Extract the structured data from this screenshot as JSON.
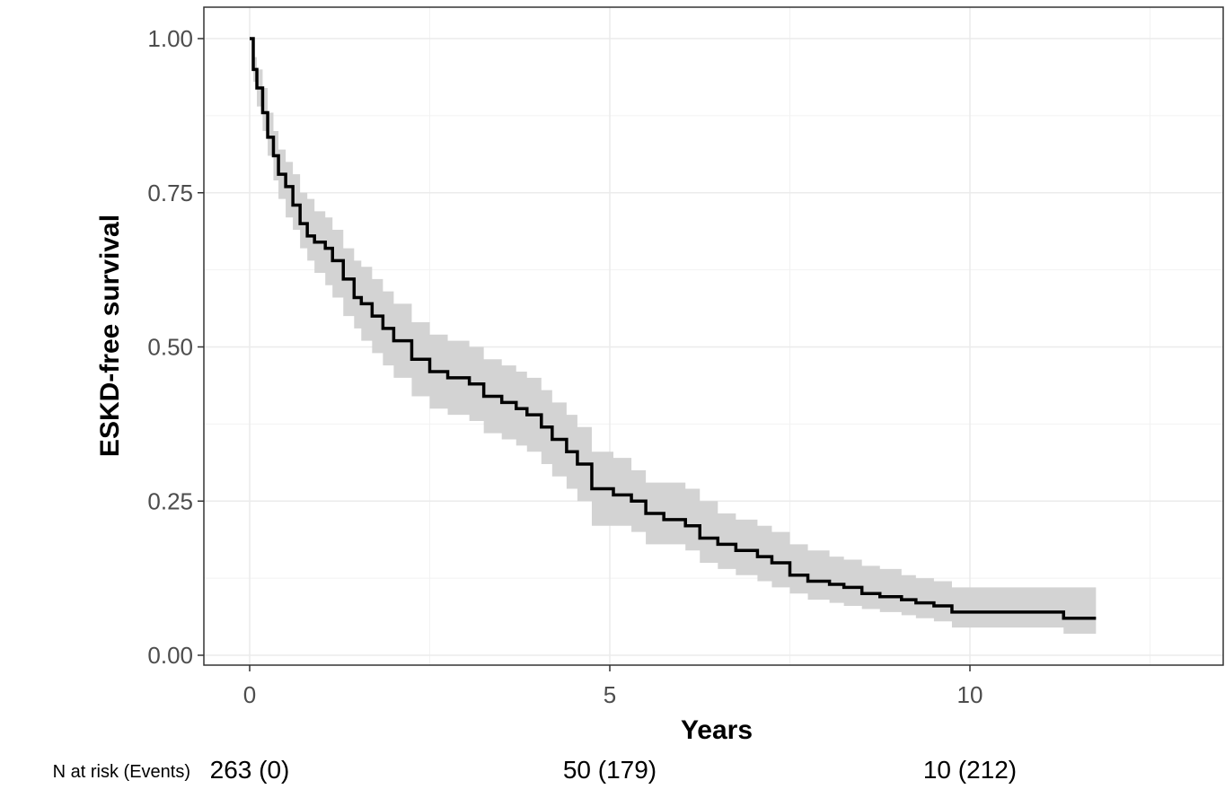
{
  "chart_data": {
    "type": "line",
    "subtype": "kaplan-meier-step",
    "xlabel": "Years",
    "ylabel": "ESKD-free survival",
    "xlim": [
      -1.25,
      27.1
    ],
    "ylim": [
      -0.05,
      1.05
    ],
    "x_ticks": [
      0,
      5,
      10
    ],
    "x_tick_labels": [
      "0",
      "5",
      "10"
    ],
    "y_ticks": [
      0,
      0.25,
      0.5,
      0.75,
      1.0
    ],
    "y_tick_labels": [
      "0.00",
      "0.25",
      "0.50",
      "0.75",
      "1.00"
    ],
    "grid": true,
    "line_color": "#000000",
    "ci_color": "#d3d3d3",
    "series": [
      {
        "x": [
          0,
          0.05,
          0.1,
          0.18,
          0.25,
          0.33,
          0.4,
          0.5,
          0.6,
          0.7,
          0.8,
          0.9,
          1.05,
          1.15,
          1.3,
          1.45,
          1.55,
          1.7,
          1.85,
          2.0,
          2.25,
          2.5,
          2.75,
          3.05,
          3.25,
          3.5,
          3.7,
          3.85,
          4.05,
          4.2,
          4.4,
          4.55,
          4.75,
          5.05,
          5.3,
          5.5,
          5.75,
          6.05,
          6.25,
          6.5,
          6.75,
          7.05,
          7.25,
          7.5,
          7.75,
          8.05,
          8.25,
          8.5,
          8.75,
          9.05,
          9.25,
          9.5,
          9.75,
          11.3,
          11.75
        ],
        "y": [
          1.0,
          0.95,
          0.92,
          0.88,
          0.84,
          0.81,
          0.78,
          0.76,
          0.73,
          0.7,
          0.68,
          0.67,
          0.66,
          0.64,
          0.61,
          0.58,
          0.57,
          0.55,
          0.53,
          0.51,
          0.48,
          0.46,
          0.45,
          0.44,
          0.42,
          0.41,
          0.4,
          0.39,
          0.37,
          0.35,
          0.33,
          0.31,
          0.27,
          0.26,
          0.25,
          0.23,
          0.22,
          0.21,
          0.19,
          0.18,
          0.17,
          0.16,
          0.15,
          0.13,
          0.12,
          0.115,
          0.11,
          0.1,
          0.095,
          0.09,
          0.085,
          0.08,
          0.07,
          0.06,
          0.06
        ],
        "lower": [
          1.0,
          0.93,
          0.89,
          0.85,
          0.81,
          0.77,
          0.74,
          0.71,
          0.69,
          0.66,
          0.64,
          0.62,
          0.6,
          0.58,
          0.55,
          0.53,
          0.51,
          0.49,
          0.47,
          0.45,
          0.42,
          0.4,
          0.39,
          0.38,
          0.36,
          0.35,
          0.34,
          0.33,
          0.31,
          0.29,
          0.27,
          0.25,
          0.21,
          0.21,
          0.2,
          0.18,
          0.18,
          0.17,
          0.15,
          0.14,
          0.13,
          0.12,
          0.11,
          0.1,
          0.09,
          0.085,
          0.08,
          0.075,
          0.07,
          0.065,
          0.06,
          0.055,
          0.045,
          0.035,
          0.035
        ],
        "upper": [
          1.0,
          0.97,
          0.95,
          0.92,
          0.88,
          0.85,
          0.82,
          0.8,
          0.78,
          0.75,
          0.74,
          0.72,
          0.71,
          0.69,
          0.66,
          0.64,
          0.63,
          0.61,
          0.59,
          0.57,
          0.54,
          0.52,
          0.51,
          0.5,
          0.48,
          0.47,
          0.46,
          0.45,
          0.43,
          0.41,
          0.39,
          0.37,
          0.33,
          0.32,
          0.3,
          0.28,
          0.28,
          0.27,
          0.25,
          0.23,
          0.22,
          0.21,
          0.2,
          0.18,
          0.17,
          0.16,
          0.155,
          0.145,
          0.14,
          0.13,
          0.125,
          0.12,
          0.11,
          0.11,
          0.11
        ]
      }
    ]
  },
  "risk_table": {
    "prefix": "N at risk (Events)",
    "entries": [
      {
        "x": 0,
        "label": "263 (0)"
      },
      {
        "x": 5,
        "label": "50 (179)"
      },
      {
        "x": 10,
        "label": "10 (212)"
      }
    ]
  }
}
